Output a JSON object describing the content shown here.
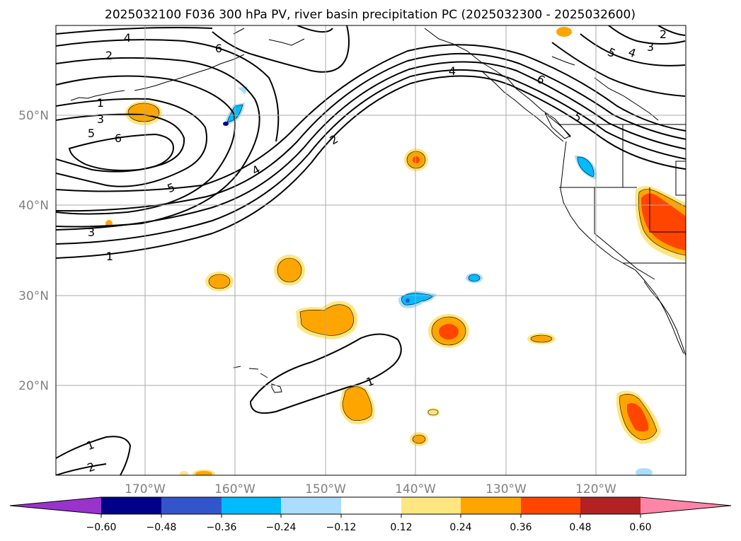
{
  "title": "2025032100 F036 300 hPa PV, river basin precipitation PC (2025032300 - 2025032600)",
  "x_ticks": [
    "170°W",
    "160°W",
    "150°W",
    "140°W",
    "130°W",
    "120°W"
  ],
  "y_ticks": [
    "50°N",
    "40°N",
    "30°N",
    "20°N"
  ],
  "contour_labels": [
    "4",
    "2",
    "1",
    "3",
    "5",
    "6",
    "6",
    "5",
    "4",
    "2",
    "1",
    "3",
    "4",
    "6",
    "5",
    "5",
    "4",
    "3",
    "2",
    "1",
    "1",
    "2"
  ],
  "colorbar": {
    "ticks": [
      "−0.60",
      "−0.48",
      "−0.36",
      "−0.24",
      "−0.12",
      "0.12",
      "0.24",
      "0.36",
      "0.48",
      "0.60"
    ],
    "colors": [
      "#9933cc",
      "#000088",
      "#3355cc",
      "#00bbff",
      "#aaddff",
      "#ffffff",
      "#ffe680",
      "#ffa500",
      "#ff4500",
      "#b22222",
      "#ff85a8"
    ]
  }
}
